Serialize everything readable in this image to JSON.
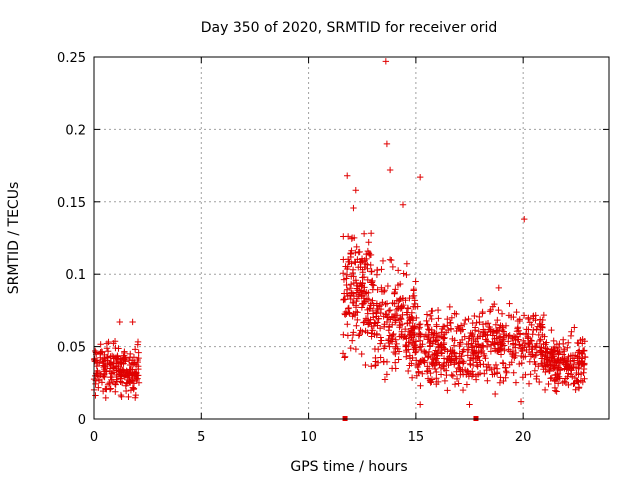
{
  "chart_data": {
    "type": "scatter",
    "title": "Day 350 of 2020, SRMTID for receiver orid",
    "xlabel": "GPS time / hours",
    "ylabel": "SRMTID / TECUs",
    "xlim": [
      0,
      24
    ],
    "ylim": [
      0,
      0.25
    ],
    "xticks": [
      "0",
      "5",
      "10",
      "15",
      "20"
    ],
    "yticks": [
      "0",
      "0.05",
      "0.1",
      "0.15",
      "0.2",
      "0.25"
    ],
    "grid": true,
    "marker": "plus",
    "color": "#e00000",
    "gap_markers_x": [
      11.7,
      17.8
    ],
    "clusters": [
      {
        "x": [
          0,
          2.1
        ],
        "y_center": 0.034,
        "y_spread": 0.014,
        "count": 220
      },
      {
        "x": [
          11.6,
          13.0
        ],
        "y_center": 0.09,
        "y_spread": 0.035,
        "count": 180
      },
      {
        "x": [
          13.0,
          15.0
        ],
        "y_center": 0.065,
        "y_spread": 0.03,
        "count": 220
      },
      {
        "x": [
          15.0,
          18.0
        ],
        "y_center": 0.048,
        "y_spread": 0.02,
        "count": 300
      },
      {
        "x": [
          18.0,
          21.0
        ],
        "y_center": 0.052,
        "y_spread": 0.022,
        "count": 260
      },
      {
        "x": [
          21.0,
          22.9
        ],
        "y_center": 0.04,
        "y_spread": 0.014,
        "count": 200
      }
    ],
    "outliers": [
      {
        "x": 13.6,
        "y": 0.247
      },
      {
        "x": 13.65,
        "y": 0.19
      },
      {
        "x": 13.8,
        "y": 0.172
      },
      {
        "x": 15.2,
        "y": 0.167
      },
      {
        "x": 11.8,
        "y": 0.168
      },
      {
        "x": 12.2,
        "y": 0.158
      },
      {
        "x": 14.4,
        "y": 0.148
      },
      {
        "x": 20.05,
        "y": 0.138
      },
      {
        "x": 11.7,
        "y": 0.043
      },
      {
        "x": 1.2,
        "y": 0.067
      },
      {
        "x": 1.8,
        "y": 0.067
      },
      {
        "x": 15.2,
        "y": 0.01
      },
      {
        "x": 17.5,
        "y": 0.01
      },
      {
        "x": 19.9,
        "y": 0.012
      }
    ]
  }
}
